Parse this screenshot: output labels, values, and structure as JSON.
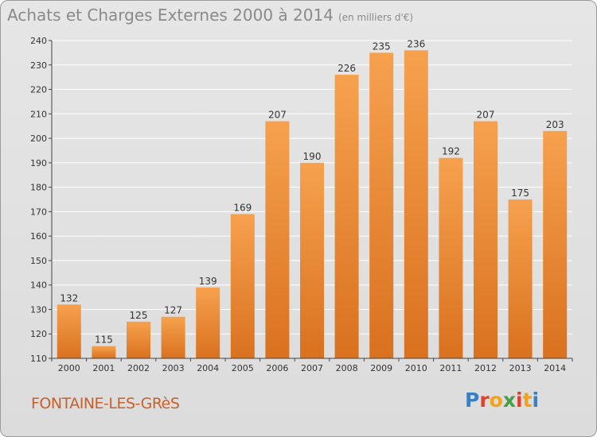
{
  "title": "Achats et Charges Externes 2000 à 2014",
  "unit": "(en milliers d'€)",
  "place": "FONTAINE-LES-GRèS",
  "logo": {
    "text": "Proxiti",
    "colors": [
      "#3a7fc4",
      "#e0402c",
      "#f3a21a",
      "#43a047",
      "#e0402c",
      "#f3a21a",
      "#3a7fc4"
    ]
  },
  "colors": {
    "bar_light": "#f6a14e",
    "bar_dark": "#d9711f",
    "axis": "#444444",
    "grid": "#ffffff"
  },
  "chart_data": {
    "type": "bar",
    "title": "Achats et Charges Externes 2000 à 2014",
    "categories": [
      "2000",
      "2001",
      "2002",
      "2003",
      "2004",
      "2005",
      "2006",
      "2007",
      "2008",
      "2009",
      "2010",
      "2011",
      "2012",
      "2013",
      "2014"
    ],
    "values": [
      132,
      115,
      125,
      127,
      139,
      169,
      207,
      190,
      226,
      235,
      236,
      192,
      207,
      175,
      203
    ],
    "ylim": [
      110,
      240
    ],
    "yticks": [
      110,
      120,
      130,
      140,
      150,
      160,
      170,
      180,
      190,
      200,
      210,
      220,
      230,
      240
    ],
    "grid": true
  }
}
